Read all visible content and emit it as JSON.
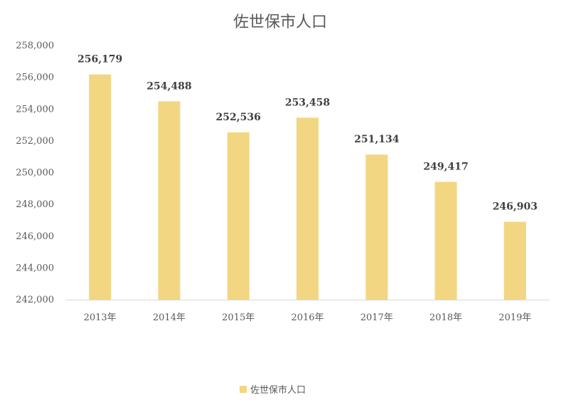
{
  "chart_data": {
    "type": "bar",
    "title": "佐世保市人口",
    "categories": [
      "2013年",
      "2014年",
      "2015年",
      "2016年",
      "2017年",
      "2018年",
      "2019年"
    ],
    "series": [
      {
        "name": "佐世保市人口",
        "values": [
          256179,
          254488,
          252536,
          253458,
          251134,
          249417,
          246903
        ],
        "labels": [
          "256,179",
          "254,488",
          "252,536",
          "253,458",
          "251,134",
          "249,417",
          "246,903"
        ],
        "color": "#F2D682"
      }
    ],
    "ylim": [
      242000,
      258000
    ],
    "yticks": [
      242000,
      244000,
      246000,
      248000,
      250000,
      252000,
      254000,
      256000,
      258000
    ],
    "ytick_labels": [
      "242,000",
      "244,000",
      "246,000",
      "248,000",
      "250,000",
      "252,000",
      "254,000",
      "256,000",
      "258,000"
    ],
    "grid": false,
    "legend_position": "bottom",
    "axis_color": "#D9D9D9"
  }
}
